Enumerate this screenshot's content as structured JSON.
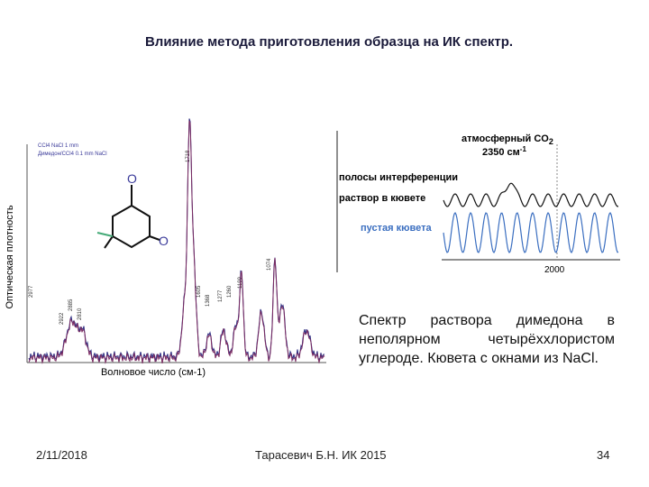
{
  "title": "Влияние метода приготовления образца на ИК спектр.",
  "left_spectrum": {
    "y_label": "Оптическая плотность",
    "x_label": "Волновое число (см-1)",
    "legend": [
      "CCl4 NaCl 1 mm",
      "Димедон/CCl4 0.1 mm NaCl"
    ],
    "molecule_atoms": [
      "O",
      "O"
    ],
    "peaks": [
      "2977",
      "2922",
      "2885",
      "2810",
      "1718",
      "1605",
      "1368",
      "1277",
      "1260",
      "1199",
      "1074"
    ]
  },
  "right_spectrum": {
    "co2_label": "атмосферный CO",
    "co2_sub": "2",
    "co2_band": "2350 см",
    "co2_band_sup": "-1",
    "interference_label": "полосы интерференции",
    "solution_label": "раствор в кювете",
    "empty_label": "пустая кювета",
    "axis_label": "2000"
  },
  "caption": "Спектр раствора димедона в неполярном четырёххлористом углероде. Кювета с окнами из NaCl.",
  "footer": {
    "date": "2/11/2018",
    "author": "Тарасевич Б.Н.  ИК 2015",
    "page": "34"
  }
}
